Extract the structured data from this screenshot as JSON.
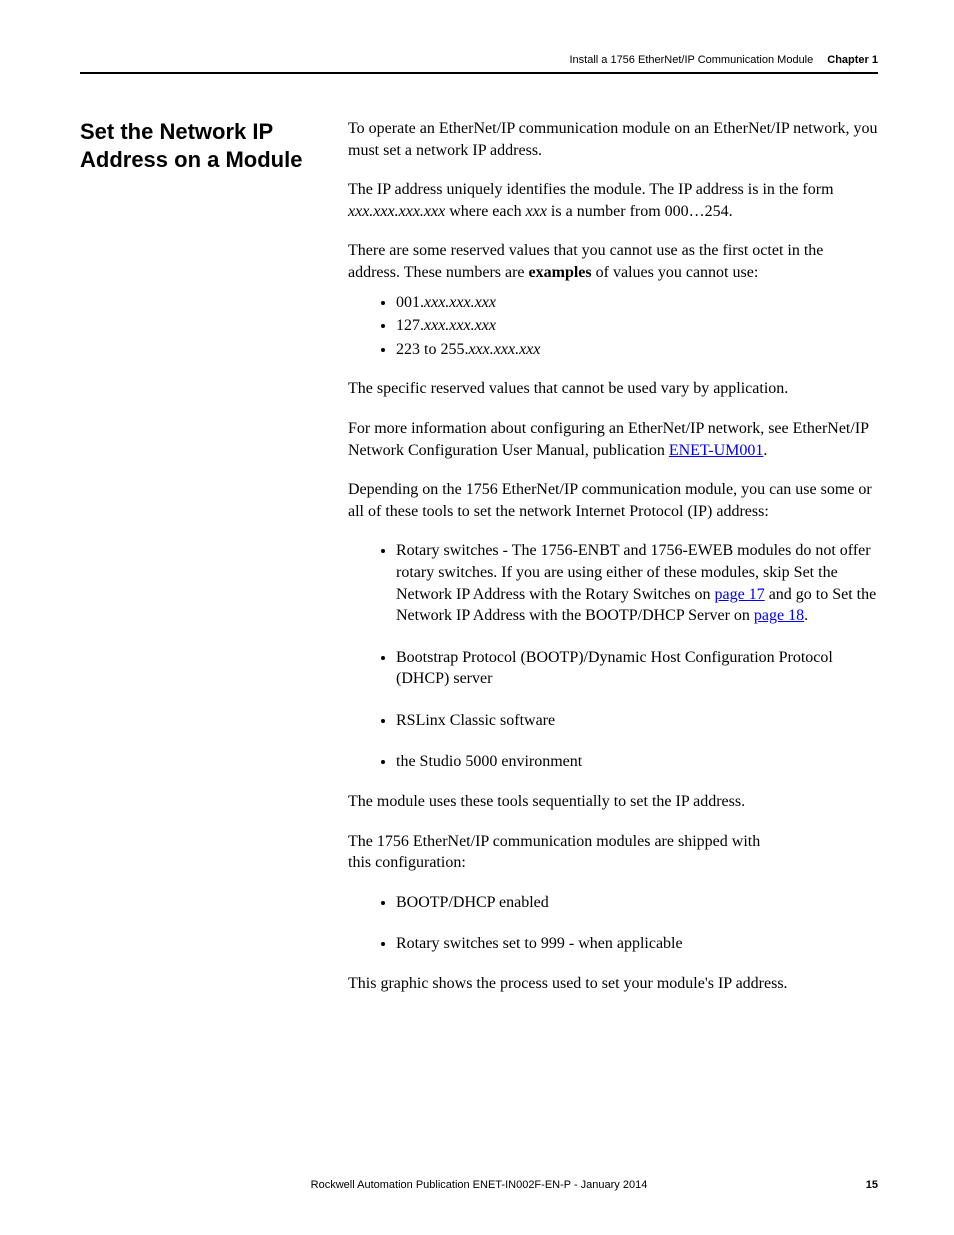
{
  "header": {
    "doc_title": "Install a 1756 EtherNet/IP Communication Module",
    "chapter_label": "Chapter 1"
  },
  "section_heading": "Set the Network IP Address on a Module",
  "body": {
    "p1": "To operate an EtherNet/IP communication module on an EtherNet/IP network, you must set a network IP address.",
    "p2_a": "The IP address uniquely identifies the module. The IP address is in the form ",
    "p2_b_italic": "xxx.xxx.xxx.xxx",
    "p2_c": " where each ",
    "p2_d_italic": "xxx",
    "p2_e": " is a number from 000…254.",
    "p3_a": "There are some reserved values that you cannot use as the first octet in the address. These numbers are ",
    "p3_b_bold": "examples",
    "p3_c": " of values you cannot use:",
    "reserved_list": [
      {
        "pre": "001.",
        "ital": "xxx.xxx.xxx"
      },
      {
        "pre": "127.",
        "ital": "xxx.xxx.xxx"
      },
      {
        "pre": "223 to 255.",
        "ital": "xxx.xxx.xxx"
      }
    ],
    "p4": "The specific reserved values that cannot be used vary by application.",
    "p5_a": "For more information about configuring an EtherNet/IP network, see EtherNet/IP Network Configuration User Manual, publication ",
    "p5_link": "ENET-UM001",
    "p5_b": ".",
    "p6": "Depending on the 1756 EtherNet/IP communication module, you can use some or all of these tools to set the network Internet Protocol (IP) address:",
    "tools_list": {
      "item1_a": "Rotary switches - The 1756-ENBT and 1756-EWEB modules do not offer rotary switches. If you are using either of these modules, skip Set the Network IP Address with the Rotary Switches on ",
      "item1_link1": "page 17",
      "item1_b": " and go to Set the Network IP Address with the BOOTP/DHCP Server on ",
      "item1_link2": "page 18",
      "item1_c": ".",
      "item2": "Bootstrap Protocol (BOOTP)/Dynamic Host Configuration Protocol (DHCP) server",
      "item3": "RSLinx Classic software",
      "item4": "the Studio 5000 environment"
    },
    "p7": "The module uses these tools sequentially to set the IP address.",
    "p8": "The 1756 EtherNet/IP communication modules are shipped with this configuration:",
    "ship_list": {
      "item1": "BOOTP/DHCP enabled",
      "item2": "Rotary switches set to 999 - when applicable"
    },
    "p9": "This graphic shows the process used to set your module's IP address."
  },
  "footer": {
    "publication": "Rockwell Automation Publication ENET-IN002F-EN-P - January 2014",
    "page_number": "15"
  }
}
